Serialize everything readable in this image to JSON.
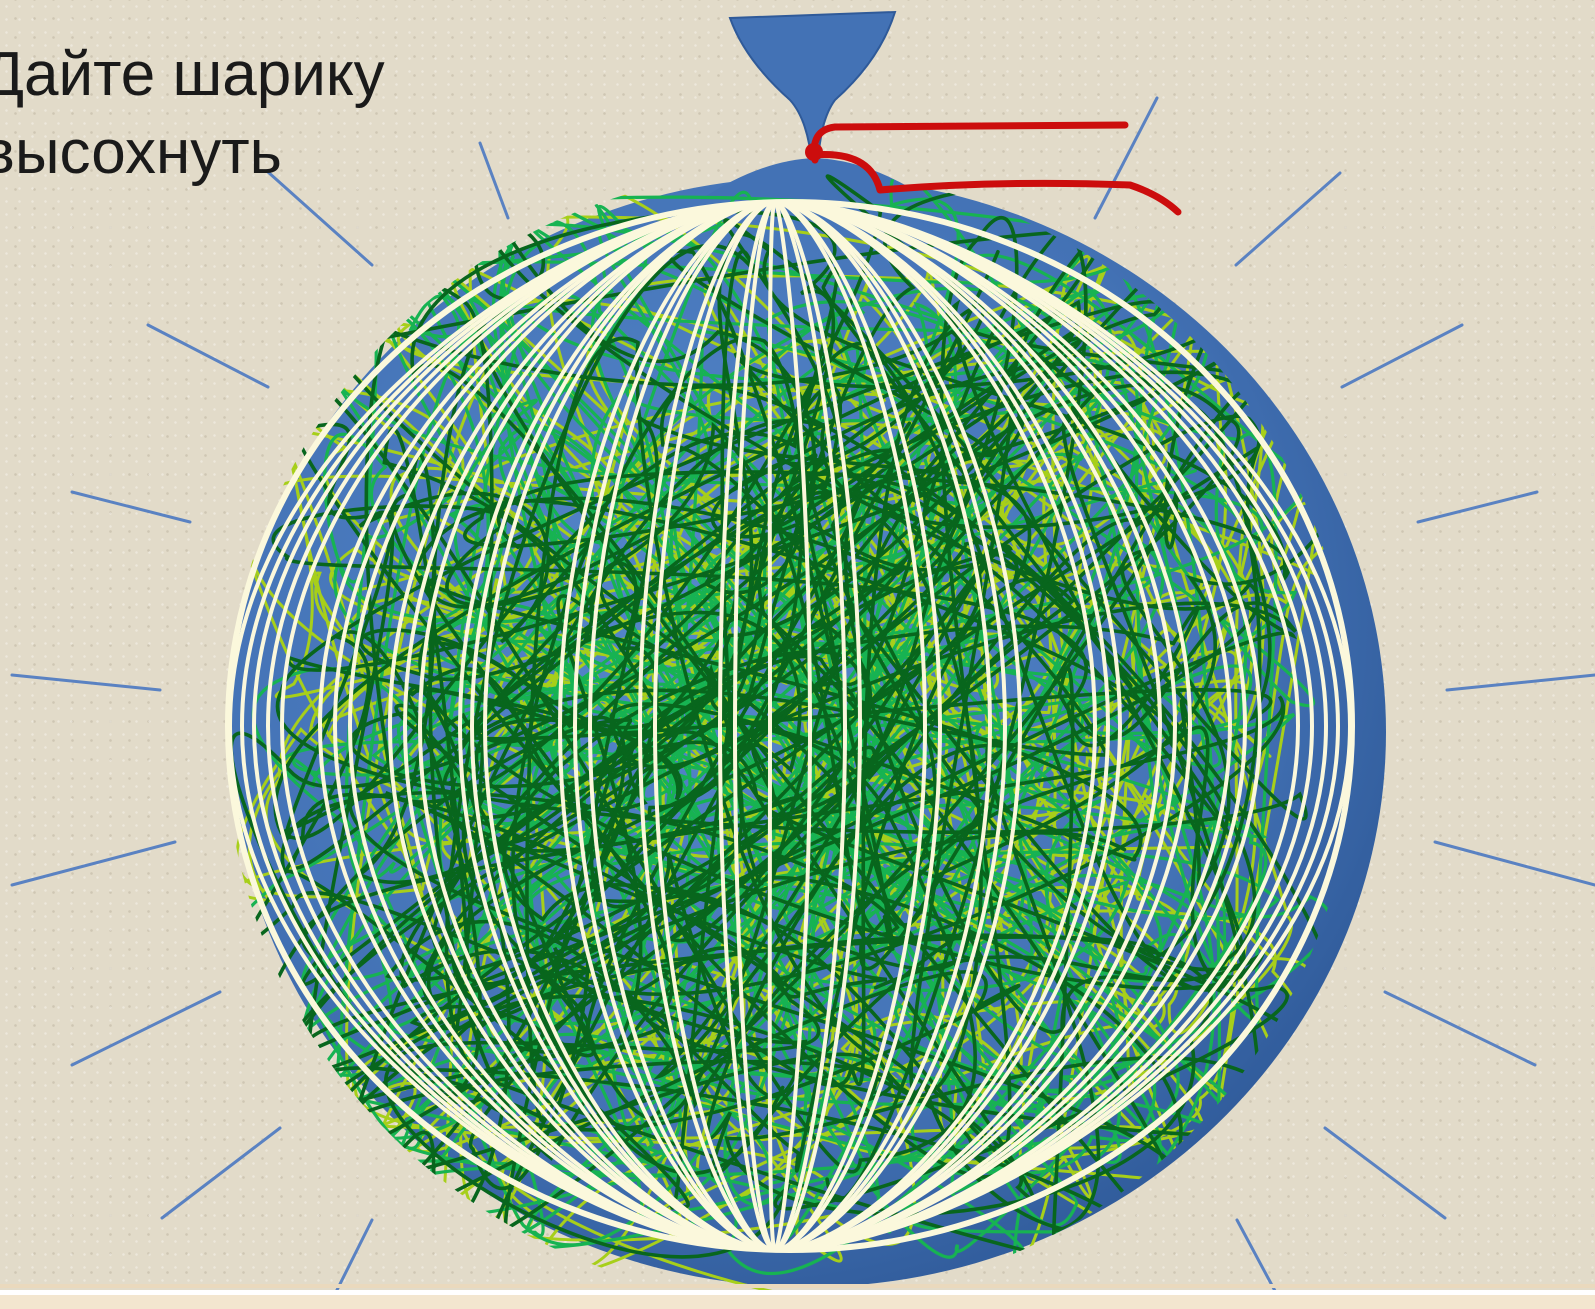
{
  "caption": {
    "line1": "Дайте шарику",
    "line2": "высохнуть"
  },
  "colors": {
    "balloon": "#4372b5",
    "balloon_dark": "#2f5a99",
    "thread_white": "#fbf8dc",
    "thread_dark_green": "#08661d",
    "thread_green": "#17b352",
    "thread_lime": "#a7cf1a",
    "string_red": "#cc0d0d",
    "rays": "#5a82c2"
  },
  "icons": {
    "balloon": "balloon-illustration",
    "string": "red-string"
  }
}
